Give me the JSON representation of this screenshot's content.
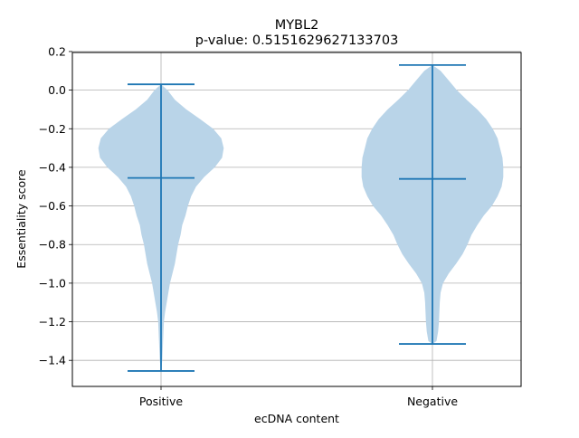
{
  "chart_data": {
    "type": "violin",
    "title": "MYBL2",
    "subtitle": "p-value: 0.5151629627133703",
    "xlabel": "ecDNA content",
    "ylabel": "Essentiality score",
    "categories": [
      "Positive",
      "Negative"
    ],
    "ylim": [
      -1.535,
      0.195
    ],
    "yticks": [
      0.2,
      0.0,
      -0.2,
      -0.4,
      -0.6,
      -0.8,
      -1.0,
      -1.2,
      -1.4
    ],
    "ytick_labels": [
      "0.2",
      "0.0",
      "−0.2",
      "−0.4",
      "−0.6",
      "−0.8",
      "−1.0",
      "−1.2",
      "−1.4"
    ],
    "grid": true,
    "colors": {
      "body": "#b9d4e8",
      "line": "#1f77b4",
      "grid": "#b0b0b0"
    },
    "series": [
      {
        "category": "Positive",
        "min": -1.455,
        "max": 0.03,
        "median": -0.455,
        "density": [
          [
            0.03,
            0.0
          ],
          [
            0.0,
            0.08
          ],
          [
            -0.05,
            0.17
          ],
          [
            -0.1,
            0.31
          ],
          [
            -0.15,
            0.48
          ],
          [
            -0.2,
            0.64
          ],
          [
            -0.25,
            0.74
          ],
          [
            -0.3,
            0.77
          ],
          [
            -0.35,
            0.75
          ],
          [
            -0.4,
            0.66
          ],
          [
            -0.45,
            0.53
          ],
          [
            -0.5,
            0.43
          ],
          [
            -0.55,
            0.37
          ],
          [
            -0.6,
            0.33
          ],
          [
            -0.65,
            0.3
          ],
          [
            -0.7,
            0.26
          ],
          [
            -0.75,
            0.24
          ],
          [
            -0.8,
            0.21
          ],
          [
            -0.85,
            0.19
          ],
          [
            -0.9,
            0.17
          ],
          [
            -0.95,
            0.14
          ],
          [
            -1.0,
            0.11
          ],
          [
            -1.05,
            0.09
          ],
          [
            -1.1,
            0.07
          ],
          [
            -1.15,
            0.05
          ],
          [
            -1.2,
            0.035
          ],
          [
            -1.25,
            0.03
          ],
          [
            -1.3,
            0.025
          ],
          [
            -1.35,
            0.02
          ],
          [
            -1.4,
            0.015
          ],
          [
            -1.455,
            0.0
          ]
        ]
      },
      {
        "category": "Negative",
        "min": -1.315,
        "max": 0.13,
        "median": -0.46,
        "density": [
          [
            0.13,
            0.0
          ],
          [
            0.1,
            0.1
          ],
          [
            0.05,
            0.2
          ],
          [
            0.0,
            0.3
          ],
          [
            -0.05,
            0.42
          ],
          [
            -0.1,
            0.55
          ],
          [
            -0.15,
            0.66
          ],
          [
            -0.2,
            0.74
          ],
          [
            -0.25,
            0.8
          ],
          [
            -0.3,
            0.83
          ],
          [
            -0.35,
            0.86
          ],
          [
            -0.4,
            0.87
          ],
          [
            -0.45,
            0.87
          ],
          [
            -0.5,
            0.85
          ],
          [
            -0.55,
            0.8
          ],
          [
            -0.6,
            0.73
          ],
          [
            -0.65,
            0.63
          ],
          [
            -0.7,
            0.55
          ],
          [
            -0.75,
            0.48
          ],
          [
            -0.8,
            0.43
          ],
          [
            -0.85,
            0.37
          ],
          [
            -0.9,
            0.29
          ],
          [
            -0.95,
            0.2
          ],
          [
            -1.0,
            0.13
          ],
          [
            -1.05,
            0.1
          ],
          [
            -1.1,
            0.09
          ],
          [
            -1.15,
            0.085
          ],
          [
            -1.2,
            0.08
          ],
          [
            -1.25,
            0.07
          ],
          [
            -1.3,
            0.05
          ],
          [
            -1.315,
            0.0
          ]
        ]
      }
    ]
  }
}
